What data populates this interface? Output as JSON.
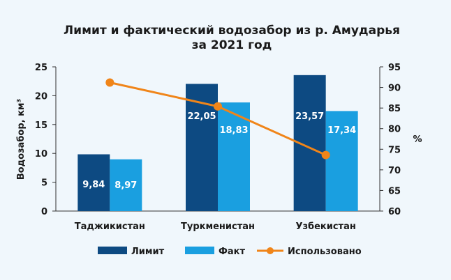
{
  "chart_data": {
    "type": "bar",
    "title_line1": "Лимит и фактический водозабор из р. Амударья",
    "title_line2": "за 2021 год",
    "ylabel": "Водозабор, км³",
    "y2label": "%",
    "categories": [
      "Таджикистан",
      "Туркменистан",
      "Узбекистан"
    ],
    "ylim": [
      0,
      25
    ],
    "yticks": [
      "0",
      "5",
      "10",
      "15",
      "20",
      "25"
    ],
    "y2lim": [
      60,
      95
    ],
    "y2ticks": [
      "60",
      "65",
      "70",
      "75",
      "80",
      "85",
      "90",
      "95"
    ],
    "series": [
      {
        "name": "Лимит",
        "values": [
          9.84,
          22.05,
          23.57
        ],
        "labels": [
          "9,84",
          "22,05",
          "23,57"
        ],
        "color": "#0d4a82"
      },
      {
        "name": "Факт",
        "values": [
          8.97,
          18.83,
          17.34
        ],
        "labels": [
          "8,97",
          "18,83",
          "17,34"
        ],
        "color": "#1a9fe0"
      }
    ],
    "line": {
      "name": "Использовано",
      "values": [
        91.2,
        85.4,
        73.6
      ],
      "color": "#f08519"
    },
    "grid": false,
    "legend_position": "bottom"
  }
}
